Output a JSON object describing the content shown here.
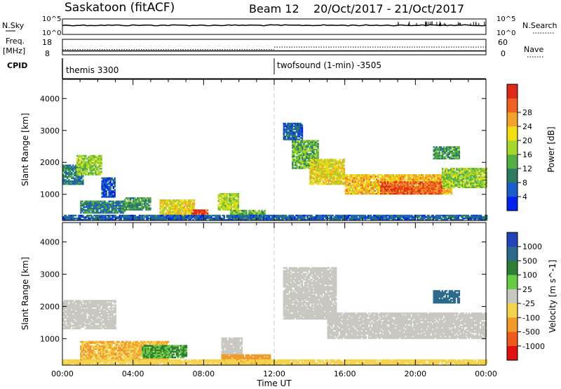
{
  "header": {
    "title": "Saskatoon (fitACF)",
    "beam": "Beam 12",
    "date_range": "20/Oct/2017 - 21/Oct/2017"
  },
  "chart_data": [
    {
      "type": "line",
      "name": "noise-panel",
      "left_label": "N.Sky",
      "right_label": "N.Search",
      "left_ticks": [
        "10^5",
        "10^0"
      ],
      "right_ticks": [
        "10^5",
        "10^0"
      ],
      "log_scale": true
    },
    {
      "type": "line",
      "name": "freq-nave-panel",
      "left_label_top": "Freq.",
      "left_label_unit": "[MHz]",
      "right_label": "Nave",
      "left_ticks": [
        18,
        8
      ],
      "right_ticks": [
        60,
        0
      ],
      "ylim_left": [
        8,
        18
      ],
      "ylim_right": [
        0,
        60
      ],
      "freq_mhz": 10.5,
      "nave_before": 20,
      "nave_after": 30
    },
    {
      "type": "table",
      "name": "cpid-panel",
      "label": "CPID",
      "segments": [
        {
          "start_hour": 0,
          "text": "themis 3300"
        },
        {
          "start_hour": 12,
          "text": "twofsound (1-min) -3505"
        }
      ]
    },
    {
      "type": "heatmap",
      "name": "power-panel",
      "ylabel": "Slant Range [km]",
      "xlim": [
        0,
        24
      ],
      "ylim": [
        180,
        4600
      ],
      "yticks": [
        1000,
        2000,
        3000,
        4000
      ],
      "colorbar": {
        "label": "Power [dB]",
        "ticks": [
          "4",
          "8",
          "12",
          "16",
          "20",
          "24",
          "28"
        ],
        "colors": [
          "#0022ee",
          "#1b5ccc",
          "#2b7a62",
          "#55b044",
          "#a6d82c",
          "#f2dd10",
          "#f3a32a",
          "#f06020",
          "#e02818"
        ]
      },
      "regions": [
        {
          "h0": 0.0,
          "h1": 1.2,
          "r0": 1300,
          "r1": 1900,
          "value": 10
        },
        {
          "h0": 0.8,
          "h1": 2.2,
          "r0": 1600,
          "r1": 2200,
          "value": 16
        },
        {
          "h0": 2.2,
          "h1": 3.0,
          "r0": 900,
          "r1": 1500,
          "value": 6
        },
        {
          "h0": 1.0,
          "h1": 3.5,
          "r0": 400,
          "r1": 800,
          "value": 10
        },
        {
          "h0": 3.5,
          "h1": 5.0,
          "r0": 500,
          "r1": 900,
          "value": 12
        },
        {
          "h0": 5.5,
          "h1": 7.5,
          "r0": 300,
          "r1": 800,
          "value": 20
        },
        {
          "h0": 7.3,
          "h1": 8.2,
          "r0": 300,
          "r1": 500,
          "value": 28
        },
        {
          "h0": 8.8,
          "h1": 10.0,
          "r0": 500,
          "r1": 1000,
          "value": 18
        },
        {
          "h0": 9.5,
          "h1": 11.5,
          "r0": 200,
          "r1": 500,
          "value": 14
        },
        {
          "h0": 12.5,
          "h1": 13.6,
          "r0": 2700,
          "r1": 3200,
          "value": 8
        },
        {
          "h0": 13.0,
          "h1": 14.5,
          "r0": 1800,
          "r1": 2700,
          "value": 14
        },
        {
          "h0": 14.0,
          "h1": 16.0,
          "r0": 1300,
          "r1": 2100,
          "value": 20
        },
        {
          "h0": 16.0,
          "h1": 22.0,
          "r0": 1000,
          "r1": 1600,
          "value": 22
        },
        {
          "h0": 18.0,
          "h1": 21.5,
          "r0": 1000,
          "r1": 1400,
          "value": 27
        },
        {
          "h0": 21.5,
          "h1": 24.0,
          "r0": 1200,
          "r1": 1800,
          "value": 16
        },
        {
          "h0": 21.0,
          "h1": 22.5,
          "r0": 2100,
          "r1": 2500,
          "value": 12
        },
        {
          "h0": 0.0,
          "h1": 24.0,
          "r0": 180,
          "r1": 330,
          "value": 8
        }
      ]
    },
    {
      "type": "heatmap",
      "name": "velocity-panel",
      "ylabel": "Slant Range [km]",
      "xlabel": "Time UT",
      "xlim": [
        0,
        24
      ],
      "ylim": [
        180,
        4600
      ],
      "yticks": [
        1000,
        2000,
        3000,
        4000
      ],
      "xticks": [
        "00:00",
        "04:00",
        "08:00",
        "12:00",
        "16:00",
        "20:00",
        "00:00"
      ],
      "colorbar": {
        "label": "Velocity [m s^-1]",
        "ticks": [
          "1000",
          "500",
          "100",
          "25",
          "-25",
          "-100",
          "-500",
          "-1000"
        ],
        "colors": [
          "#2244bb",
          "#2b6a8c",
          "#2e7d32",
          "#66cc44",
          "#c8c8c0",
          "#f4d24a",
          "#f19a2a",
          "#ef5a1a",
          "#e01010"
        ]
      },
      "regions": [
        {
          "h0": 0.0,
          "h1": 3.0,
          "r0": 1300,
          "r1": 2200,
          "value": 0
        },
        {
          "h0": 1.0,
          "h1": 6.0,
          "r0": 300,
          "r1": 900,
          "value": -100
        },
        {
          "h0": 4.5,
          "h1": 7.0,
          "r0": 400,
          "r1": 800,
          "value": 100
        },
        {
          "h0": 9.0,
          "h1": 10.2,
          "r0": 500,
          "r1": 1000,
          "value": 0
        },
        {
          "h0": 9.0,
          "h1": 11.8,
          "r0": 200,
          "r1": 500,
          "value": -200
        },
        {
          "h0": 12.5,
          "h1": 15.5,
          "r0": 1600,
          "r1": 3200,
          "value": 0
        },
        {
          "h0": 15.0,
          "h1": 24.0,
          "r0": 1000,
          "r1": 1800,
          "value": 0
        },
        {
          "h0": 21.0,
          "h1": 22.5,
          "r0": 2100,
          "r1": 2500,
          "value": 700
        },
        {
          "h0": 0.0,
          "h1": 24.0,
          "r0": 180,
          "r1": 330,
          "value": -50
        }
      ]
    }
  ]
}
